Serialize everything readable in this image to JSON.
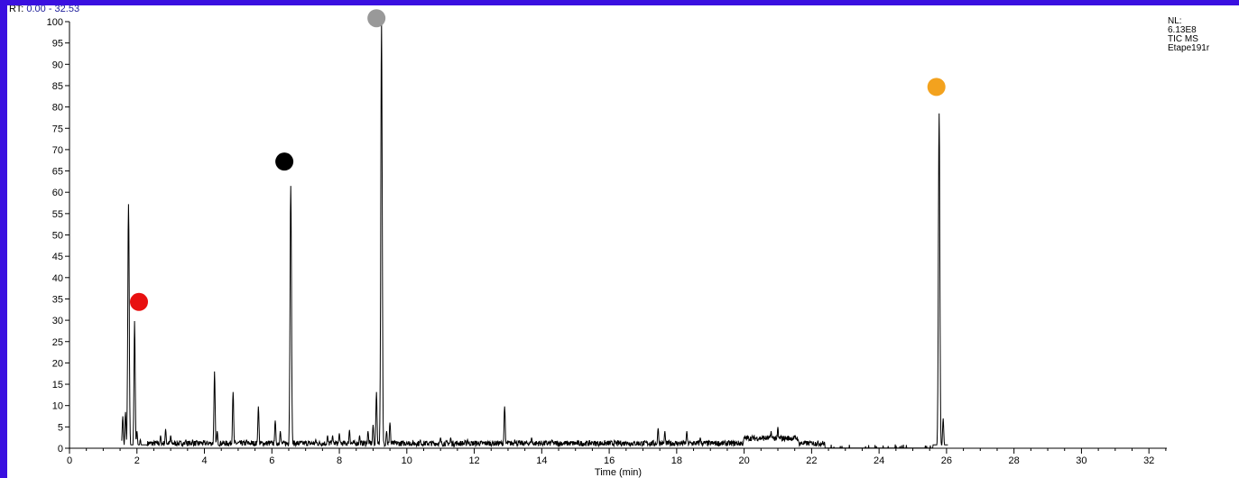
{
  "header": {
    "rt_prefix": "RT:",
    "rt_range": "0.00 - 32.53"
  },
  "info": {
    "nl_label": "NL:",
    "nl_value": "6.13E8",
    "scan_type": "TIC  MS",
    "filename": "Etape191r"
  },
  "colors": {
    "frame": "#3a10e0",
    "marker_red": "#e81010",
    "marker_black": "#000000",
    "marker_gray": "#999999",
    "marker_orange": "#f3a21e"
  },
  "chart_data": {
    "type": "line",
    "xlabel": "Time (min)",
    "ylabel": "",
    "xlim": [
      0,
      32.53
    ],
    "ylim": [
      0,
      100
    ],
    "x_ticks": [
      0,
      2,
      4,
      6,
      8,
      10,
      12,
      14,
      16,
      18,
      20,
      22,
      24,
      26,
      28,
      30,
      32
    ],
    "y_ticks": [
      0,
      5,
      10,
      15,
      20,
      25,
      30,
      35,
      40,
      45,
      50,
      55,
      60,
      65,
      70,
      75,
      80,
      85,
      90,
      95,
      100
    ],
    "grid": false,
    "legend": "none",
    "peaks": [
      {
        "x": 1.58,
        "y": 7.5
      },
      {
        "x": 1.66,
        "y": 8.5
      },
      {
        "x": 1.75,
        "y": 57.2
      },
      {
        "x": 1.93,
        "y": 29.8
      },
      {
        "x": 2.0,
        "y": 4
      },
      {
        "x": 2.1,
        "y": 2
      },
      {
        "x": 2.7,
        "y": 3
      },
      {
        "x": 2.85,
        "y": 4.5
      },
      {
        "x": 3.0,
        "y": 3
      },
      {
        "x": 3.45,
        "y": 2
      },
      {
        "x": 3.65,
        "y": 2
      },
      {
        "x": 3.9,
        "y": 1.5
      },
      {
        "x": 4.3,
        "y": 18
      },
      {
        "x": 4.38,
        "y": 4
      },
      {
        "x": 4.85,
        "y": 13.2
      },
      {
        "x": 5.25,
        "y": 2
      },
      {
        "x": 5.6,
        "y": 9.8
      },
      {
        "x": 6.1,
        "y": 6.5
      },
      {
        "x": 6.25,
        "y": 4
      },
      {
        "x": 6.56,
        "y": 61.5
      },
      {
        "x": 6.9,
        "y": 1.5
      },
      {
        "x": 7.3,
        "y": 2
      },
      {
        "x": 7.65,
        "y": 3
      },
      {
        "x": 7.8,
        "y": 3
      },
      {
        "x": 8.0,
        "y": 3.5
      },
      {
        "x": 8.3,
        "y": 4.3
      },
      {
        "x": 8.6,
        "y": 3
      },
      {
        "x": 8.85,
        "y": 4
      },
      {
        "x": 9.0,
        "y": 5.5
      },
      {
        "x": 9.1,
        "y": 13.2
      },
      {
        "x": 9.25,
        "y": 100
      },
      {
        "x": 9.4,
        "y": 4
      },
      {
        "x": 9.5,
        "y": 6
      },
      {
        "x": 10.0,
        "y": 1.5
      },
      {
        "x": 10.4,
        "y": 2
      },
      {
        "x": 11.0,
        "y": 2.5
      },
      {
        "x": 11.3,
        "y": 2.5
      },
      {
        "x": 11.8,
        "y": 2
      },
      {
        "x": 12.2,
        "y": 1.5
      },
      {
        "x": 12.9,
        "y": 9.8
      },
      {
        "x": 13.2,
        "y": 2
      },
      {
        "x": 13.7,
        "y": 2.5
      },
      {
        "x": 14.3,
        "y": 2
      },
      {
        "x": 15.5,
        "y": 1.5
      },
      {
        "x": 16.5,
        "y": 1.5
      },
      {
        "x": 17.45,
        "y": 4.7
      },
      {
        "x": 17.65,
        "y": 4
      },
      {
        "x": 18.3,
        "y": 4
      },
      {
        "x": 18.7,
        "y": 2.5
      },
      {
        "x": 20.0,
        "y": 2.5
      },
      {
        "x": 20.8,
        "y": 4
      },
      {
        "x": 21.0,
        "y": 5
      },
      {
        "x": 21.6,
        "y": 2
      },
      {
        "x": 22.0,
        "y": 1.5
      },
      {
        "x": 25.78,
        "y": 78.5
      },
      {
        "x": 25.9,
        "y": 7
      }
    ],
    "markers": [
      {
        "x": 2.06,
        "y": 34.3,
        "color": "#e81010"
      },
      {
        "x": 6.37,
        "y": 67.2,
        "color": "#000000"
      },
      {
        "x": 9.1,
        "y": 100.8,
        "color": "#999999"
      },
      {
        "x": 25.7,
        "y": 84.7,
        "color": "#f3a21e"
      }
    ]
  }
}
